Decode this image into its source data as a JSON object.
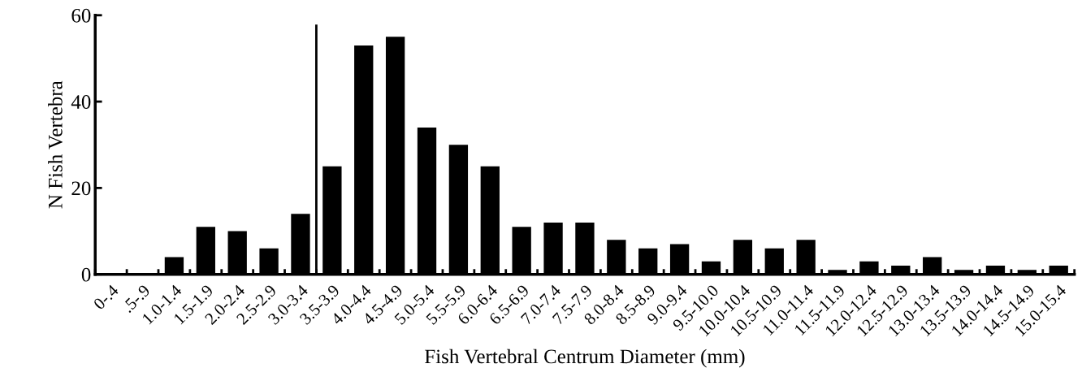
{
  "chart_data": {
    "type": "bar",
    "xlabel": "Fish Vertebral Centrum Diameter (mm)",
    "ylabel": "N Fish Vertebra",
    "categories": [
      "0-.4",
      ".5-.9",
      "1.0-1.4",
      "1.5-1.9",
      "2.0-2.4",
      "2.5-2.9",
      "3.0-3.4",
      "3.5-3.9",
      "4.0-4.4",
      "4.5-4.9",
      "5.0-5.4",
      "5.5-5.9",
      "6.0-6.4",
      "6.5-6.9",
      "7.0-7.4",
      "7.5-7.9",
      "8.0-8.4",
      "8.5-8.9",
      "9.0-9.4",
      "9.5-10.0",
      "10.0-10.4",
      "10.5-10.9",
      "11.0-11.4",
      "11.5-11.9",
      "12.0-12.4",
      "12.5-12.9",
      "13.0-13.4",
      "13.5-13.9",
      "14.0-14.4",
      "14.5-14.9",
      "15.0-15.4"
    ],
    "values": [
      0,
      0,
      4,
      11,
      10,
      6,
      14,
      25,
      53,
      55,
      34,
      30,
      25,
      11,
      12,
      12,
      8,
      6,
      7,
      3,
      8,
      6,
      8,
      1,
      3,
      2,
      4,
      1,
      2,
      1,
      2
    ],
    "color": "#000000",
    "ylim": [
      0,
      60
    ],
    "yticks": [
      0,
      20,
      40,
      60
    ],
    "grid": false,
    "legend": false
  }
}
